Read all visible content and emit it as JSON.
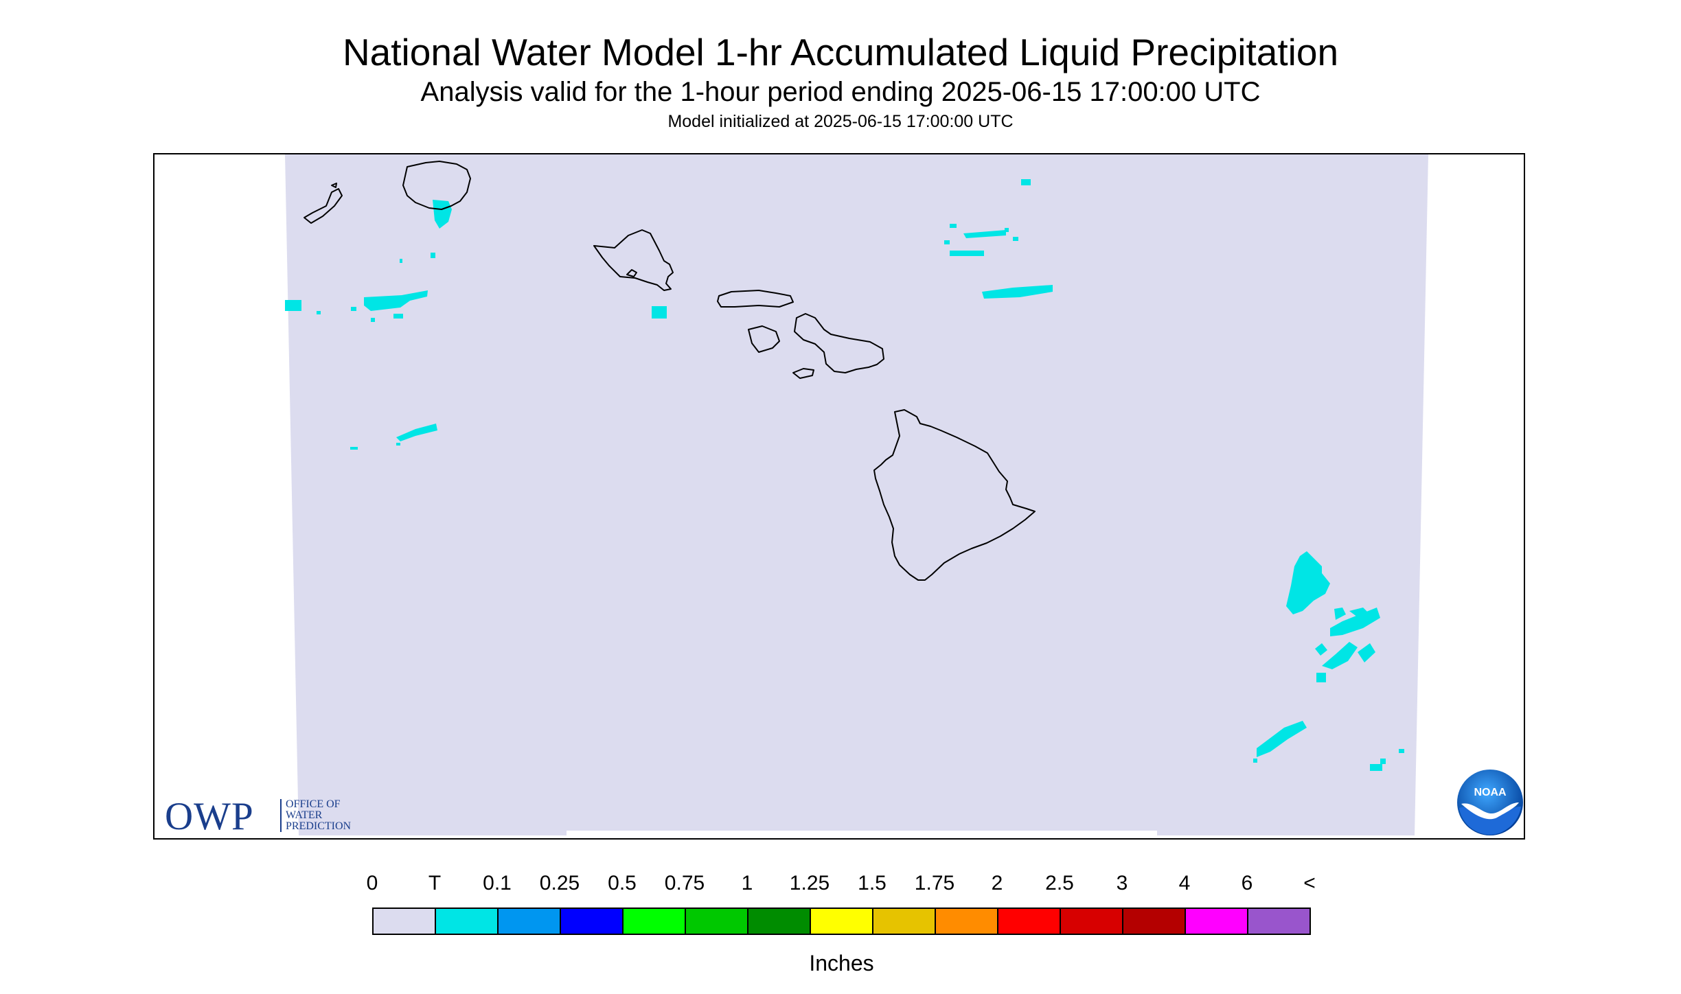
{
  "header": {
    "title": "National Water Model 1-hr Accumulated Liquid Precipitation",
    "subtitle": "Analysis valid for the 1-hour period ending 2025-06-15 17:00:00 UTC",
    "init_line": "Model initialized at 2025-06-15 17:00:00 UTC"
  },
  "map": {
    "region": "Hawaiian Islands",
    "domain_fill_color": "#dcdcef",
    "coastline_color": "#000000",
    "precip_color": "#00e5e5"
  },
  "logos": {
    "owp_mark": "OWP",
    "owp_lines": [
      "OFFICE OF",
      "WATER",
      "PREDICTION"
    ],
    "noaa": "NOAA"
  },
  "legend": {
    "labels": [
      "0",
      "T",
      "0.1",
      "0.25",
      "0.5",
      "0.75",
      "1",
      "1.25",
      "1.5",
      "1.75",
      "2",
      "2.5",
      "3",
      "4",
      "6",
      "<"
    ],
    "colors": [
      "#dcdcef",
      "#00e5e5",
      "#0096f0",
      "#0000ff",
      "#00ff00",
      "#00c800",
      "#008c00",
      "#ffff00",
      "#e6c300",
      "#ff8c00",
      "#ff0000",
      "#d70000",
      "#b40000",
      "#ff00ff",
      "#9955cc"
    ],
    "unit": "Inches"
  }
}
